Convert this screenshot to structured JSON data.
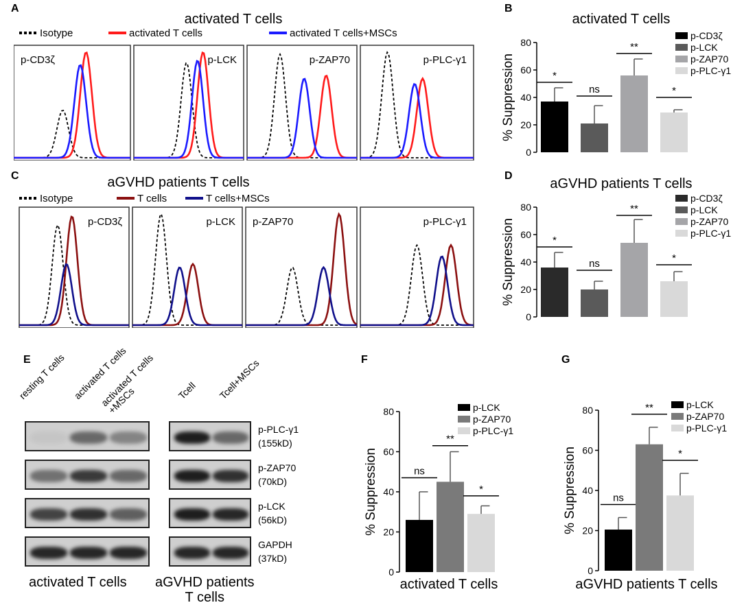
{
  "figure": {
    "panel_A": {
      "letter": "A",
      "title": "activated T cells",
      "legend": [
        {
          "label": "Isotype",
          "color": "#000000",
          "style": "dashed"
        },
        {
          "label": "activated T cells",
          "color": "#ff1a1a",
          "style": "solid"
        },
        {
          "label": "activated T cells+MSCs",
          "color": "#1a1aff",
          "style": "solid"
        }
      ],
      "histograms": [
        {
          "label": "p-CD3ζ",
          "label_pos": "left",
          "peaks": {
            "isotype": [
              0.42,
              0.45
            ],
            "control": [
              0.62,
              1.0
            ],
            "treated": [
              0.57,
              0.88
            ]
          }
        },
        {
          "label": "p-LCK",
          "label_pos": "right",
          "peaks": {
            "isotype": [
              0.48,
              0.9
            ],
            "control": [
              0.63,
              1.0
            ],
            "treated": [
              0.58,
              0.92
            ]
          }
        },
        {
          "label": "p-ZAP70",
          "label_pos": "right",
          "peaks": {
            "isotype": [
              0.3,
              0.98
            ],
            "control": [
              0.72,
              0.78
            ],
            "treated": [
              0.52,
              0.75
            ]
          }
        },
        {
          "label": "p-PLC-γ1",
          "label_pos": "right",
          "peaks": {
            "isotype": [
              0.24,
              1.0
            ],
            "control": [
              0.55,
              0.75
            ],
            "treated": [
              0.48,
              0.7
            ]
          }
        }
      ]
    },
    "panel_B": {
      "letter": "B",
      "chart_data": {
        "type": "bar",
        "title": "activated T cells",
        "ylabel": "% Suppression",
        "ylim": [
          0,
          80
        ],
        "yticks": [
          0,
          20,
          40,
          60,
          80
        ],
        "categories": [
          "p-CD3ζ",
          "p-LCK",
          "p-ZAP70",
          "p-PLC-γ1"
        ],
        "values": [
          37,
          21,
          56,
          29
        ],
        "errors": [
          10,
          13,
          12,
          2
        ],
        "colors": [
          "#000000",
          "#5a5a5a",
          "#a5a5a8",
          "#d9d9d9"
        ],
        "significance": [
          "*",
          "ns",
          "**",
          "*"
        ],
        "sig_heights": [
          51,
          41,
          72,
          40
        ]
      }
    },
    "panel_C": {
      "letter": "C",
      "title": "aGVHD patients T cells",
      "legend": [
        {
          "label": "Isotype",
          "color": "#000000",
          "style": "dashed"
        },
        {
          "label": "T cells",
          "color": "#8b1010",
          "style": "solid"
        },
        {
          "label": "T cells+MSCs",
          "color": "#10108b",
          "style": "solid"
        }
      ],
      "histograms": [
        {
          "label": "p-CD3ζ",
          "label_pos": "right",
          "peaks": {
            "isotype": [
              0.35,
              0.9
            ],
            "control": [
              0.48,
              0.98
            ],
            "treated": [
              0.43,
              0.55
            ]
          }
        },
        {
          "label": "p-LCK",
          "label_pos": "right",
          "peaks": {
            "isotype": [
              0.26,
              1.0
            ],
            "control": [
              0.55,
              0.55
            ],
            "treated": [
              0.43,
              0.52
            ]
          }
        },
        {
          "label": "p-ZAP70",
          "label_pos": "left",
          "peaks": {
            "isotype": [
              0.42,
              0.52
            ],
            "control": [
              0.84,
              1.0
            ],
            "treated": [
              0.7,
              0.52
            ]
          }
        },
        {
          "label": "p-PLC-γ1",
          "label_pos": "right",
          "peaks": {
            "isotype": [
              0.5,
              0.72
            ],
            "control": [
              0.8,
              0.72
            ],
            "treated": [
              0.72,
              0.62
            ]
          }
        }
      ]
    },
    "panel_D": {
      "letter": "D",
      "chart_data": {
        "type": "bar",
        "title": "aGVHD patients T cells",
        "ylabel": "% Suppression",
        "ylim": [
          0,
          80
        ],
        "yticks": [
          0,
          20,
          40,
          60,
          80
        ],
        "categories": [
          "p-CD3ζ",
          "p-LCK",
          "p-ZAP70",
          "p-PLC-γ1"
        ],
        "values": [
          36,
          20,
          54,
          26
        ],
        "errors": [
          11,
          6,
          17,
          7
        ],
        "colors": [
          "#2a2a2a",
          "#5a5a5a",
          "#a5a5a8",
          "#d9d9d9"
        ],
        "significance": [
          "*",
          "ns",
          "**",
          "*"
        ],
        "sig_heights": [
          51,
          34,
          74,
          38
        ]
      }
    },
    "panel_E": {
      "letter": "E",
      "left_lanes": [
        "resting T cells",
        "activated T cells",
        "activated T cells\n+MSCs"
      ],
      "right_lanes": [
        "Tcell",
        "Tcell+MSCs"
      ],
      "proteins": [
        {
          "name": "p-PLC-γ1",
          "mw": "(155kD)"
        },
        {
          "name": "p-ZAP70",
          "mw": "(70kD)"
        },
        {
          "name": "p-LCK",
          "mw": "(56kD)"
        },
        {
          "name": "GAPDH",
          "mw": "(37kD)"
        }
      ],
      "left_caption": "activated T cells",
      "right_caption": "aGVHD patients\nT cells"
    },
    "panel_F": {
      "letter": "F",
      "chart_data": {
        "type": "bar",
        "title": "activated T cells",
        "title_position": "bottom",
        "ylabel": "% Suppression",
        "ylim": [
          0,
          80
        ],
        "yticks": [
          0,
          20,
          40,
          60,
          80
        ],
        "categories": [
          "p-LCK",
          "p-ZAP70",
          "p-PLC-γ1"
        ],
        "values": [
          26,
          45,
          29
        ],
        "errors": [
          14,
          15,
          4
        ],
        "colors": [
          "#000000",
          "#7a7a7a",
          "#d9d9d9"
        ],
        "significance": [
          "ns",
          "**",
          "*"
        ],
        "sig_heights": [
          47,
          63,
          38
        ]
      }
    },
    "panel_G": {
      "letter": "G",
      "chart_data": {
        "type": "bar",
        "title": "aGVHD patients T cells",
        "title_position": "bottom",
        "ylabel": "% Suppression",
        "ylim": [
          0,
          80
        ],
        "yticks": [
          0,
          20,
          40,
          60,
          80
        ],
        "categories": [
          "p-LCK",
          "p-ZAP70",
          "p-PLC-γ1"
        ],
        "values": [
          20.5,
          63,
          37.5
        ],
        "errors": [
          6,
          8.5,
          11
        ],
        "colors": [
          "#000000",
          "#7a7a7a",
          "#d9d9d9"
        ],
        "significance": [
          "ns",
          "**",
          "*"
        ],
        "sig_heights": [
          33,
          78,
          55
        ]
      }
    }
  }
}
